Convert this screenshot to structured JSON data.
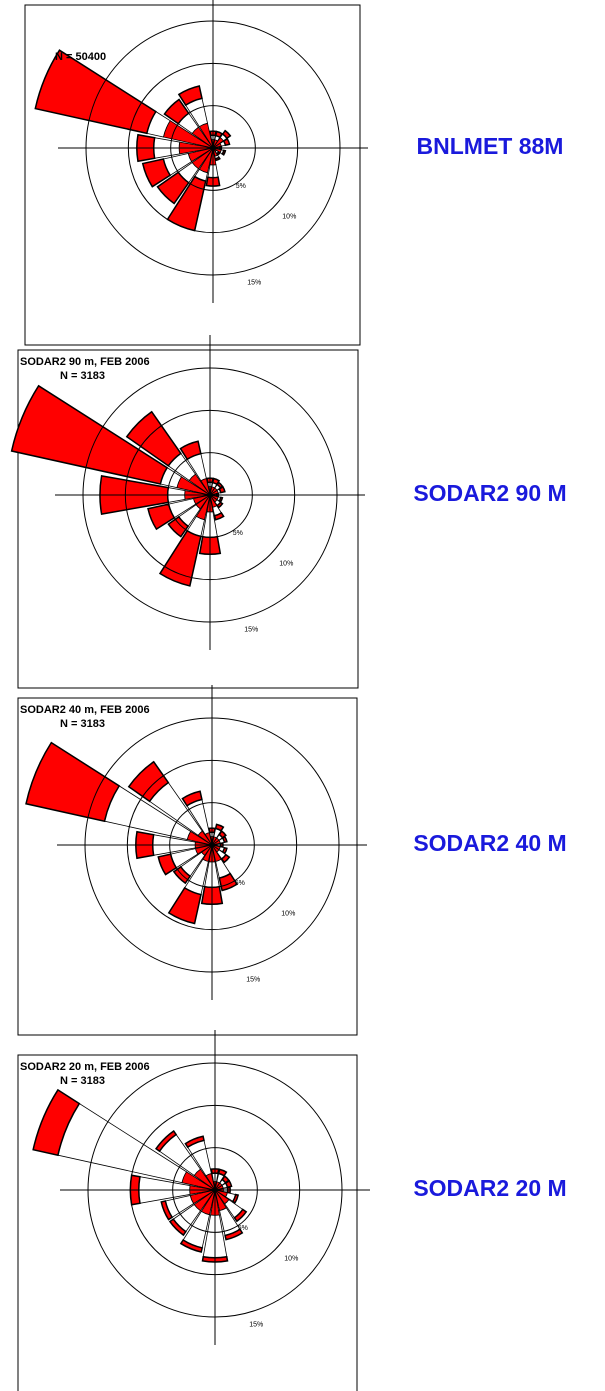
{
  "chart_data": [
    {
      "type": "windrose",
      "annotation": "N = 50400",
      "station_label": "BNLMET 88M",
      "x": [
        0,
        22.5,
        45,
        67.5,
        90,
        112.5,
        135,
        157.5,
        180,
        202.5,
        225,
        247.5,
        270,
        292.5,
        315,
        337.5
      ],
      "rlim": [
        0,
        15
      ],
      "rticks": [
        {
          "value": 5,
          "label": "5%"
        },
        {
          "value": 10,
          "label": "10%"
        },
        {
          "value": 15,
          "label": "15%"
        }
      ],
      "series": [
        {
          "color": "#ff0000",
          "values": [
            1,
            1,
            1.5,
            1,
            0.5,
            1,
            0.5,
            1,
            2,
            3,
            3,
            3,
            4,
            6,
            3,
            3
          ]
        },
        {
          "color": "#ffffff",
          "values": [
            0.5,
            0.5,
            0.5,
            0.5,
            0.3,
            0.3,
            0.3,
            0.3,
            1.5,
            1,
            2,
            3,
            3,
            2,
            2,
            3
          ]
        },
        {
          "color": "#ff0000",
          "values": [
            0.5,
            0.5,
            0.5,
            0.5,
            0.2,
            0.2,
            0.2,
            0.2,
            1,
            6,
            3,
            2.5,
            2,
            13.5,
            2,
            1.5
          ]
        }
      ]
    },
    {
      "type": "windrose",
      "title": "SODAR2 90 m, FEB 2006",
      "annotation": "N = 3183",
      "station_label": "SODAR2 90 M",
      "x": [
        0,
        22.5,
        45,
        67.5,
        90,
        112.5,
        135,
        157.5,
        180,
        202.5,
        225,
        247.5,
        270,
        292.5,
        315,
        337.5
      ],
      "rlim": [
        0,
        15
      ],
      "rticks": [
        {
          "value": 5,
          "label": "5%"
        },
        {
          "value": 10,
          "label": "10%"
        },
        {
          "value": 15,
          "label": "15%"
        }
      ],
      "series": [
        {
          "color": "#ff0000",
          "values": [
            1,
            1,
            1,
            1,
            0.5,
            1,
            1,
            1.5,
            2,
            3,
            2,
            2,
            3,
            4,
            3,
            2
          ]
        },
        {
          "color": "#ffffff",
          "values": [
            0.5,
            0.5,
            0.5,
            0.3,
            0.3,
            0.3,
            0.5,
            1,
            3,
            2,
            2.5,
            3,
            2,
            2,
            3,
            3
          ]
        },
        {
          "color": "#ff0000",
          "values": [
            0.5,
            0.5,
            0.3,
            0.5,
            0.2,
            0.2,
            0.3,
            0.5,
            2,
            6,
            1.5,
            2.5,
            8,
            18,
            6,
            1.5
          ]
        }
      ]
    },
    {
      "type": "windrose",
      "title": "SODAR2 40 m, FEB 2006",
      "annotation": "N = 3183",
      "station_label": "SODAR2 40 M",
      "x": [
        0,
        22.5,
        45,
        67.5,
        90,
        112.5,
        135,
        157.5,
        180,
        202.5,
        225,
        247.5,
        270,
        292.5,
        315,
        337.5
      ],
      "rlim": [
        0,
        15
      ],
      "rticks": [
        {
          "value": 5,
          "label": "5%"
        },
        {
          "value": 10,
          "label": "10%"
        },
        {
          "value": 15,
          "label": "15%"
        }
      ],
      "series": [
        {
          "color": "#ff0000",
          "values": [
            1,
            1,
            1,
            1,
            0.5,
            1,
            1,
            2,
            2,
            2,
            1.5,
            2,
            2,
            3,
            2,
            1.5
          ]
        },
        {
          "color": "#ffffff",
          "values": [
            0.5,
            1,
            0.5,
            0.5,
            0.5,
            0.5,
            1,
            2,
            3,
            4,
            3,
            3,
            5,
            10,
            7,
            4
          ]
        },
        {
          "color": "#ff0000",
          "values": [
            0.5,
            0.5,
            0.5,
            0.3,
            0.3,
            0.3,
            0.5,
            1.5,
            2,
            3.5,
            1,
            1.5,
            2,
            9.5,
            3,
            1
          ]
        }
      ]
    },
    {
      "type": "windrose",
      "title": "SODAR2 20 m, FEB 2006",
      "annotation": "N = 3183",
      "station_label": "SODAR2 20 M",
      "x": [
        0,
        22.5,
        45,
        67.5,
        90,
        112.5,
        135,
        157.5,
        180,
        202.5,
        225,
        247.5,
        270,
        292.5,
        315,
        337.5
      ],
      "rlim": [
        0,
        15
      ],
      "rticks": [
        {
          "value": 5,
          "label": "5%"
        },
        {
          "value": 10,
          "label": "10%"
        },
        {
          "value": 15,
          "label": "15%"
        }
      ],
      "series": [
        {
          "color": "#ff0000",
          "values": [
            1,
            1,
            1,
            1,
            1,
            1.5,
            2,
            2.5,
            3,
            3,
            3,
            3,
            3,
            4,
            3,
            2
          ]
        },
        {
          "color": "#ffffff",
          "values": [
            1,
            1,
            0.5,
            0.5,
            0.5,
            1,
            2,
            3,
            5,
            4,
            3,
            3,
            6,
            15,
            5,
            4
          ]
        },
        {
          "color": "#ff0000",
          "values": [
            0.5,
            0.5,
            0.5,
            0.5,
            0.3,
            0.3,
            0.5,
            0.5,
            0.5,
            0.5,
            0.5,
            0.5,
            1,
            3,
            0.5,
            0.5
          ]
        }
      ]
    }
  ]
}
